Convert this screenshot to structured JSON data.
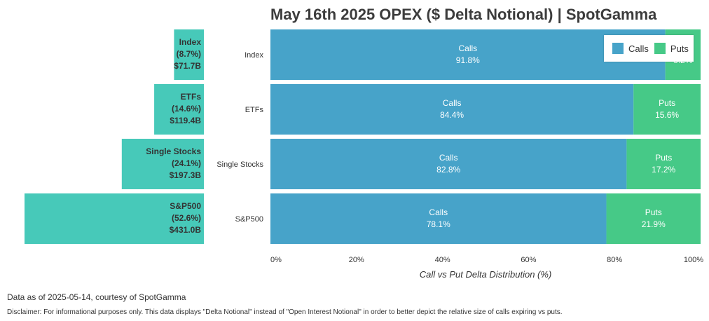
{
  "title": "May 16th 2025 OPEX ($ Delta Notional) | SpotGamma",
  "footnote": "Data as of 2025-05-14, courtesy of SpotGamma",
  "disclaimer": "Disclaimer: For informational purposes only. This data displays \"Delta Notional\" instead of \"Open Interest Notional\" in order to better depict the relative size of calls expiring vs puts.",
  "colors": {
    "calls": "#47a3c9",
    "puts": "#46c987",
    "category": "#47c9b9"
  },
  "chart_data": [
    {
      "type": "bar",
      "orientation": "horizontal-left",
      "categories": [
        "Index",
        "ETFs",
        "Single Stocks",
        "S&P500"
      ],
      "values_billion_usd": [
        71.7,
        119.4,
        197.3,
        431.0
      ],
      "share_pct": [
        8.7,
        14.6,
        24.1,
        52.6
      ],
      "bar_labels": [
        [
          "Index",
          "(8.7%)",
          "$71.7B"
        ],
        [
          "ETFs",
          "(14.6%)",
          "$119.4B"
        ],
        [
          "Single Stocks",
          "(24.1%)",
          "$197.3B"
        ],
        [
          "S&P500",
          "(52.6%)",
          "$431.0B"
        ]
      ]
    },
    {
      "type": "bar",
      "orientation": "horizontal-stacked-100",
      "title": "May 16th 2025 OPEX ($ Delta Notional) | SpotGamma",
      "xlabel": "Call vs Put Delta Distribution (%)",
      "categories": [
        "Index",
        "ETFs",
        "Single Stocks",
        "S&P500"
      ],
      "series": [
        {
          "name": "Calls",
          "values": [
            91.8,
            84.4,
            82.8,
            78.1
          ],
          "labels": [
            "91.8%",
            "84.4%",
            "82.8%",
            "78.1%"
          ]
        },
        {
          "name": "Puts",
          "values": [
            8.2,
            15.6,
            17.2,
            21.9
          ],
          "labels": [
            "8.2%",
            "15.6%",
            "17.2%",
            "21.9%"
          ]
        }
      ],
      "xlim": [
        0,
        100
      ],
      "xticks": [
        "0%",
        "20%",
        "40%",
        "60%",
        "80%",
        "100%"
      ],
      "legend": "top-right"
    }
  ]
}
